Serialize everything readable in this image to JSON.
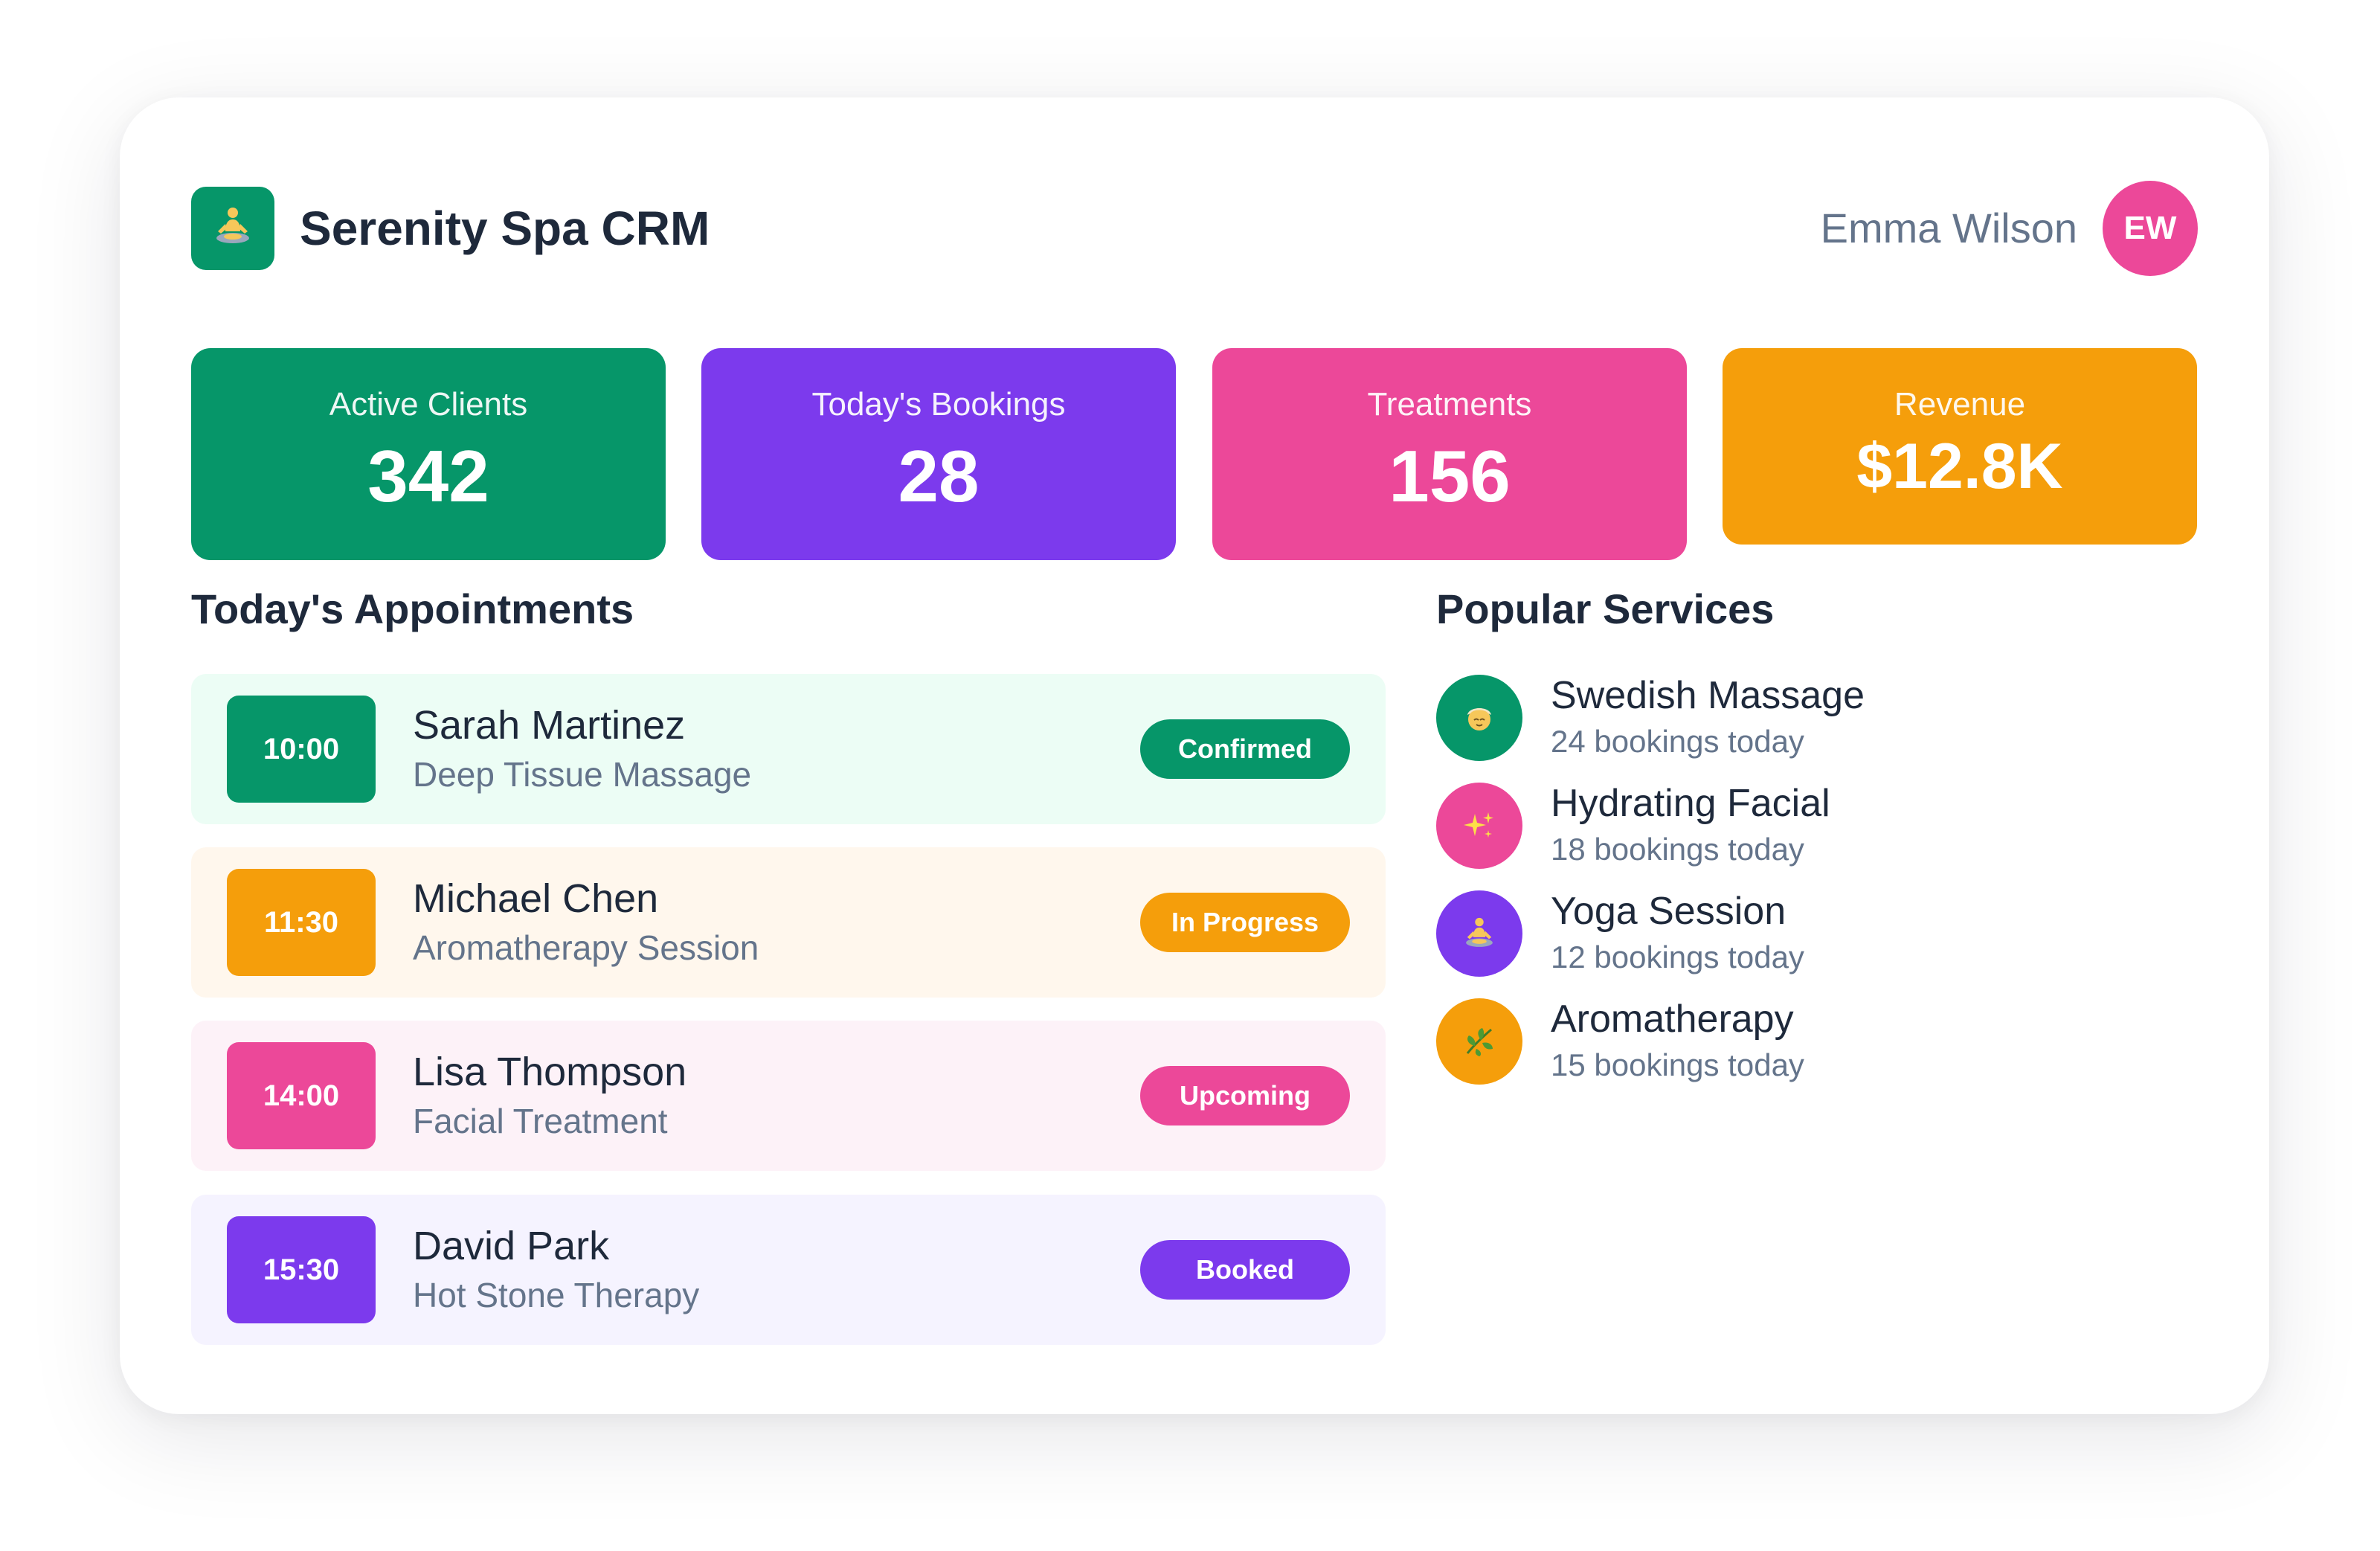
{
  "header": {
    "app_title": "Serenity Spa CRM",
    "logo_icon": "meditation-icon",
    "user_name": "Emma Wilson",
    "user_initials": "EW"
  },
  "stats": [
    {
      "label": "Active Clients",
      "value": "342",
      "color": "#069669"
    },
    {
      "label": "Today's Bookings",
      "value": "28",
      "color": "#7c3aed"
    },
    {
      "label": "Treatments",
      "value": "156",
      "color": "#ec4899"
    },
    {
      "label": "Revenue",
      "value": "$12.8K",
      "color": "#f59e0b"
    }
  ],
  "appointments": {
    "title": "Today's Appointments",
    "items": [
      {
        "time": "10:00",
        "client": "Sarah Martinez",
        "service": "Deep Tissue Massage",
        "status": "Confirmed",
        "accent": "#069669",
        "bg": "#ecfdf5"
      },
      {
        "time": "11:30",
        "client": "Michael Chen",
        "service": "Aromatherapy Session",
        "status": "In Progress",
        "accent": "#f59e0b",
        "bg": "#fff7ed"
      },
      {
        "time": "14:00",
        "client": "Lisa Thompson",
        "service": "Facial Treatment",
        "status": "Upcoming",
        "accent": "#ec4899",
        "bg": "#fdf2f8"
      },
      {
        "time": "15:30",
        "client": "David Park",
        "service": "Hot Stone Therapy",
        "status": "Booked",
        "accent": "#7c3aed",
        "bg": "#f5f3ff"
      }
    ]
  },
  "services": {
    "title": "Popular Services",
    "items": [
      {
        "name": "Swedish Massage",
        "count": "24 bookings today",
        "icon": "massage-face-icon",
        "color": "#069669"
      },
      {
        "name": "Hydrating Facial",
        "count": "18 bookings today",
        "icon": "sparkles-icon",
        "color": "#ec4899"
      },
      {
        "name": "Yoga Session",
        "count": "12 bookings today",
        "icon": "meditation-icon",
        "color": "#7c3aed"
      },
      {
        "name": "Aromatherapy",
        "count": "15 bookings today",
        "icon": "herb-leaf-icon",
        "color": "#f59e0b"
      }
    ]
  }
}
